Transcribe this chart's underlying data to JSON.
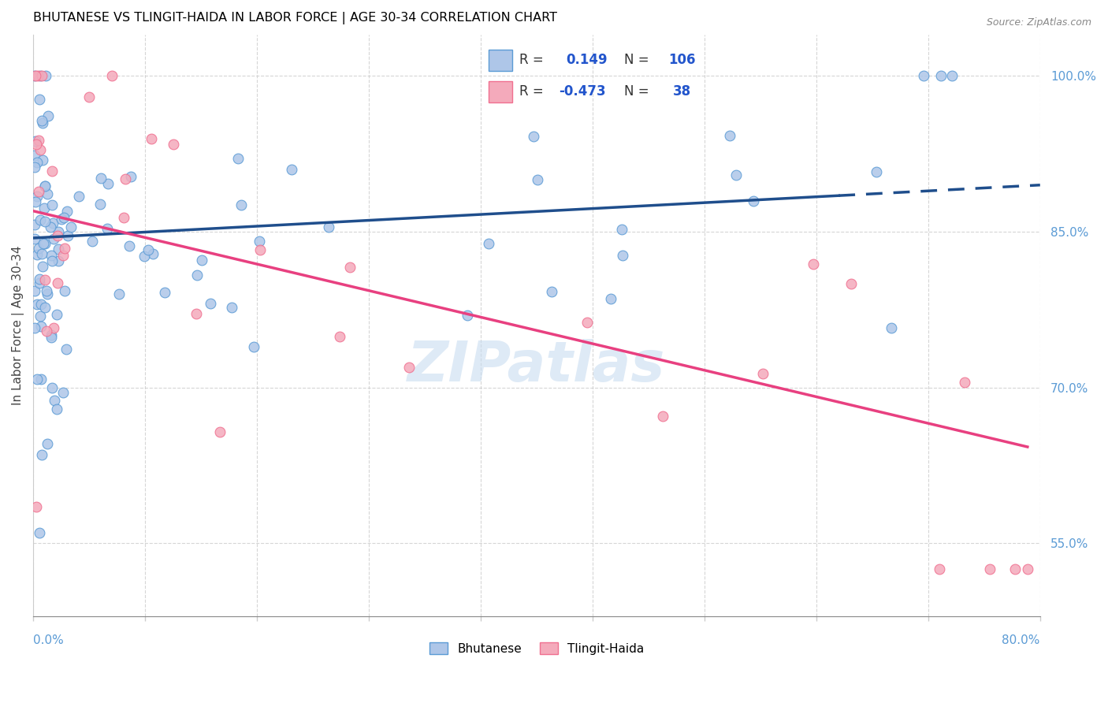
{
  "title": "BHUTANESE VS TLINGIT-HAIDA IN LABOR FORCE | AGE 30-34 CORRELATION CHART",
  "source": "Source: ZipAtlas.com",
  "ylabel": "In Labor Force | Age 30-34",
  "xlim": [
    0.0,
    0.8
  ],
  "ylim": [
    0.48,
    1.04
  ],
  "blue_R": 0.149,
  "blue_N": 106,
  "pink_R": -0.473,
  "pink_N": 38,
  "blue_color": "#AEC6E8",
  "pink_color": "#F4AABB",
  "blue_edge_color": "#5B9BD5",
  "pink_edge_color": "#F07090",
  "blue_line_color": "#1F4E8C",
  "pink_line_color": "#E84080",
  "background_color": "#FFFFFF",
  "grid_color": "#CCCCCC",
  "axis_color": "#5B9BD5",
  "title_color": "#000000",
  "legend_text_color": "#333333",
  "legend_value_color": "#2255CC",
  "ytick_vals": [
    0.55,
    0.7,
    0.85,
    1.0
  ],
  "ytick_labels": [
    "55.0%",
    "70.0%",
    "85.0%",
    "100.0%"
  ],
  "blue_line_x0": 0.0,
  "blue_line_y0": 0.844,
  "blue_line_x1": 0.8,
  "blue_line_y1": 0.895,
  "blue_line_solid_end": 0.64,
  "pink_line_x0": 0.0,
  "pink_line_y0": 0.87,
  "pink_line_x1": 0.8,
  "pink_line_y1": 0.64,
  "watermark_text": "ZIPatlas",
  "watermark_color": "#C8DCF0",
  "watermark_alpha": 0.6
}
